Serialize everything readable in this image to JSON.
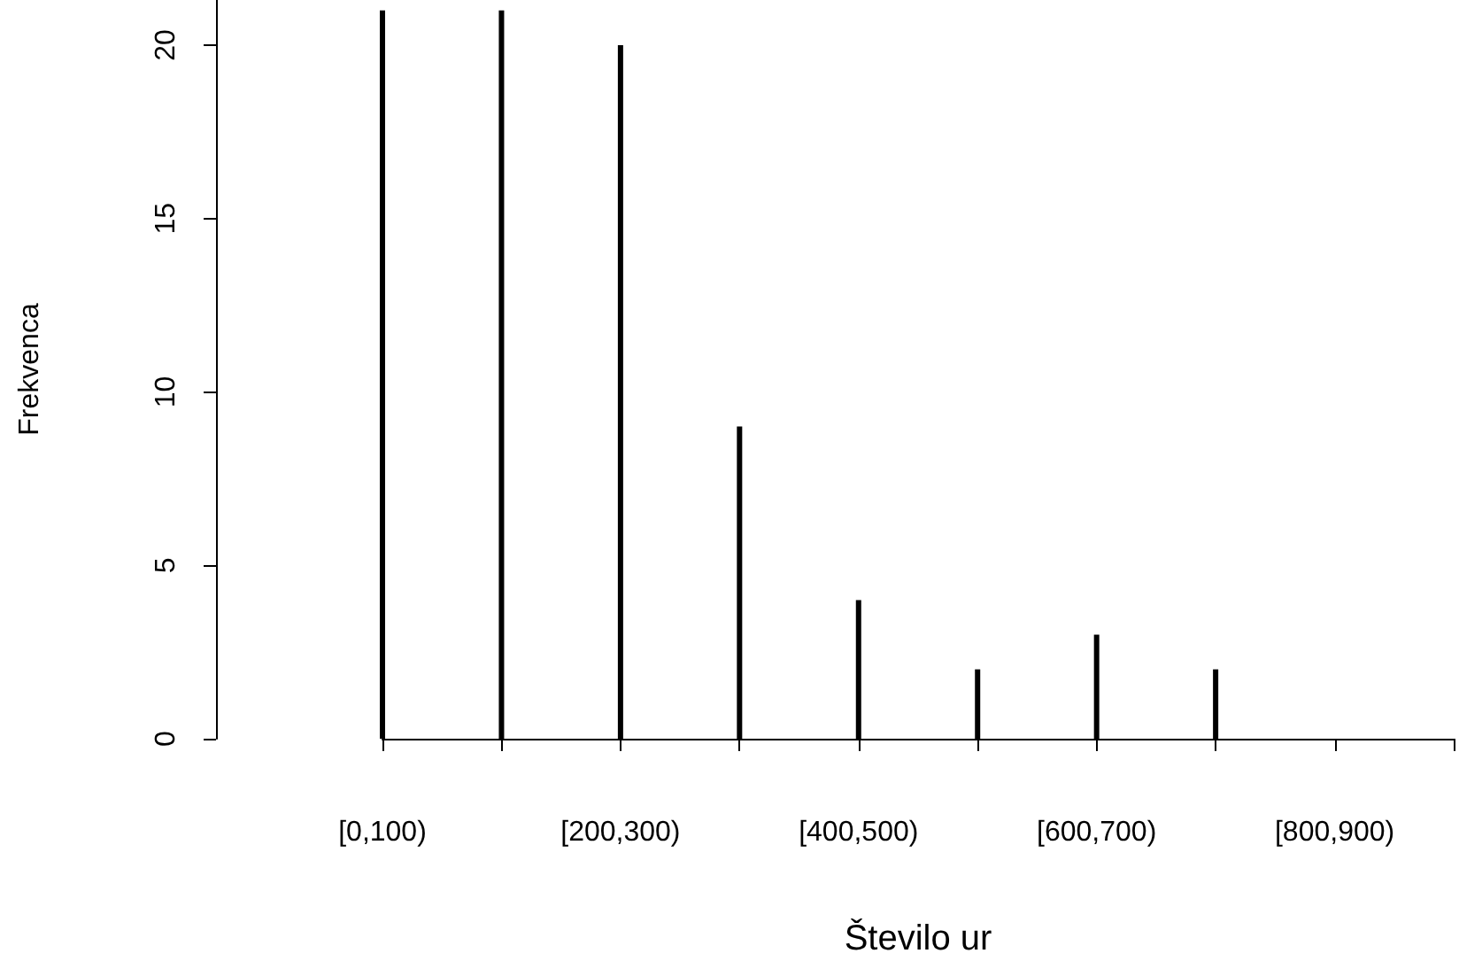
{
  "chart_data": {
    "type": "bar",
    "xlabel": "Število ur",
    "ylabel": "Frekvenca",
    "categories": [
      "[0,100)",
      null,
      "[200,300)",
      null,
      "[400,500)",
      null,
      "[600,700)",
      null,
      "[800,900)",
      null
    ],
    "values": [
      21,
      21,
      20,
      9,
      4,
      2,
      3,
      2,
      0,
      0
    ],
    "color": "#000000",
    "ylim": [
      0,
      21.3
    ],
    "yticks": [
      0,
      5,
      10,
      15,
      20
    ],
    "grid": false
  }
}
